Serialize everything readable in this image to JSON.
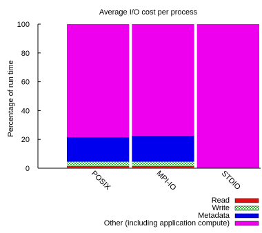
{
  "chart_data": {
    "type": "bar",
    "stacked": true,
    "title": "Average I/O cost per process",
    "xlabel": "",
    "ylabel": "Percentage of run time",
    "ylim": [
      0,
      100
    ],
    "yticks": [
      0,
      20,
      40,
      60,
      80,
      100
    ],
    "categories": [
      "POSIX",
      "MPI-IO",
      "STDIO"
    ],
    "series": [
      {
        "name": "Read",
        "color": "#dd1111",
        "pattern": "solid",
        "values": [
          1.5,
          1.5,
          0
        ]
      },
      {
        "name": "Write",
        "color": "#22cc22",
        "pattern": "dotted",
        "values": [
          3,
          3,
          0
        ]
      },
      {
        "name": "Metadata",
        "color": "#0000ee",
        "pattern": "solid",
        "values": [
          17,
          18,
          0.5
        ]
      },
      {
        "name": "Other (including application compute)",
        "color": "#ee00ee",
        "pattern": "solid",
        "values": [
          78.5,
          77.5,
          99.5
        ]
      }
    ],
    "grid": false,
    "legend_position": "bottom-right"
  }
}
